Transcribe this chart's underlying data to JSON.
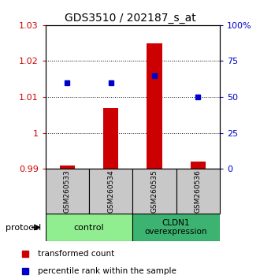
{
  "title": "GDS3510 / 202187_s_at",
  "samples": [
    "GSM260533",
    "GSM260534",
    "GSM260535",
    "GSM260536"
  ],
  "red_values": [
    0.991,
    1.007,
    1.025,
    0.992
  ],
  "blue_values": [
    60,
    60,
    65,
    50
  ],
  "ylim_left": [
    0.99,
    1.03
  ],
  "ylim_right": [
    0,
    100
  ],
  "yticks_left": [
    0.99,
    1.0,
    1.01,
    1.02,
    1.03
  ],
  "ytick_labels_left": [
    "0.99",
    "1",
    "1.01",
    "1.02",
    "1.03"
  ],
  "yticks_right": [
    0,
    25,
    50,
    75,
    100
  ],
  "ytick_labels_right": [
    "0",
    "25",
    "50",
    "75",
    "100%"
  ],
  "bar_color": "#CC0000",
  "marker_color": "#0000CC",
  "bar_width": 0.35,
  "background_color": "#ffffff",
  "legend_red": "transformed count",
  "legend_blue": "percentile rank within the sample",
  "protocol_label": "protocol",
  "bar_bottom": 0.99,
  "ctrl_color": "#90EE90",
  "cldn_color": "#3CB371",
  "sample_box_color": "#C8C8C8"
}
